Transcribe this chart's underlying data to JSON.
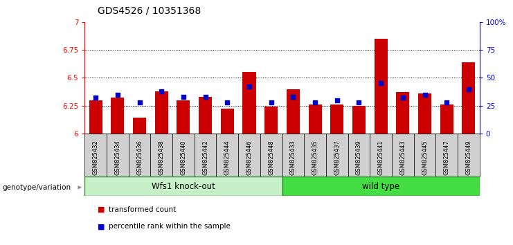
{
  "title": "GDS4526 / 10351368",
  "samples": [
    "GSM825432",
    "GSM825434",
    "GSM825436",
    "GSM825438",
    "GSM825440",
    "GSM825442",
    "GSM825444",
    "GSM825446",
    "GSM825448",
    "GSM825433",
    "GSM825435",
    "GSM825437",
    "GSM825439",
    "GSM825441",
    "GSM825443",
    "GSM825445",
    "GSM825447",
    "GSM825449"
  ],
  "red_values": [
    6.3,
    6.32,
    6.14,
    6.38,
    6.3,
    6.33,
    6.22,
    6.55,
    6.24,
    6.4,
    6.26,
    6.26,
    6.25,
    6.85,
    6.37,
    6.36,
    6.26,
    6.64
  ],
  "blue_values": [
    32,
    35,
    28,
    38,
    33,
    33,
    28,
    42,
    28,
    33,
    28,
    30,
    28,
    45,
    32,
    35,
    28,
    40
  ],
  "groups": [
    "Wfs1 knock-out",
    "wild type"
  ],
  "g1_count": 9,
  "g2_count": 9,
  "group_color1": "#c8f0c8",
  "group_color2": "#44dd44",
  "group_edge_color": "#228B22",
  "ylim_left": [
    6.0,
    7.0
  ],
  "ylim_right": [
    0,
    100
  ],
  "yticks_left": [
    6.0,
    6.25,
    6.5,
    6.75,
    7.0
  ],
  "ytick_labels_left": [
    "6",
    "6.25",
    "6.5",
    "6.75",
    "7"
  ],
  "yticks_right": [
    0,
    25,
    50,
    75,
    100
  ],
  "ytick_labels_right": [
    "0",
    "25",
    "50",
    "75",
    "100%"
  ],
  "grid_values": [
    6.25,
    6.5,
    6.75
  ],
  "bar_color": "#cc0000",
  "dot_color": "#0000cc",
  "baseline": 6.0,
  "bar_width": 0.6,
  "legend_items": [
    "transformed count",
    "percentile rank within the sample"
  ],
  "legend_colors": [
    "#cc0000",
    "#0000cc"
  ],
  "xlabel_left": "genotype/variation",
  "bg_color": "#ffffff",
  "title_fontsize": 10,
  "tick_gray": "#d0d0d0"
}
